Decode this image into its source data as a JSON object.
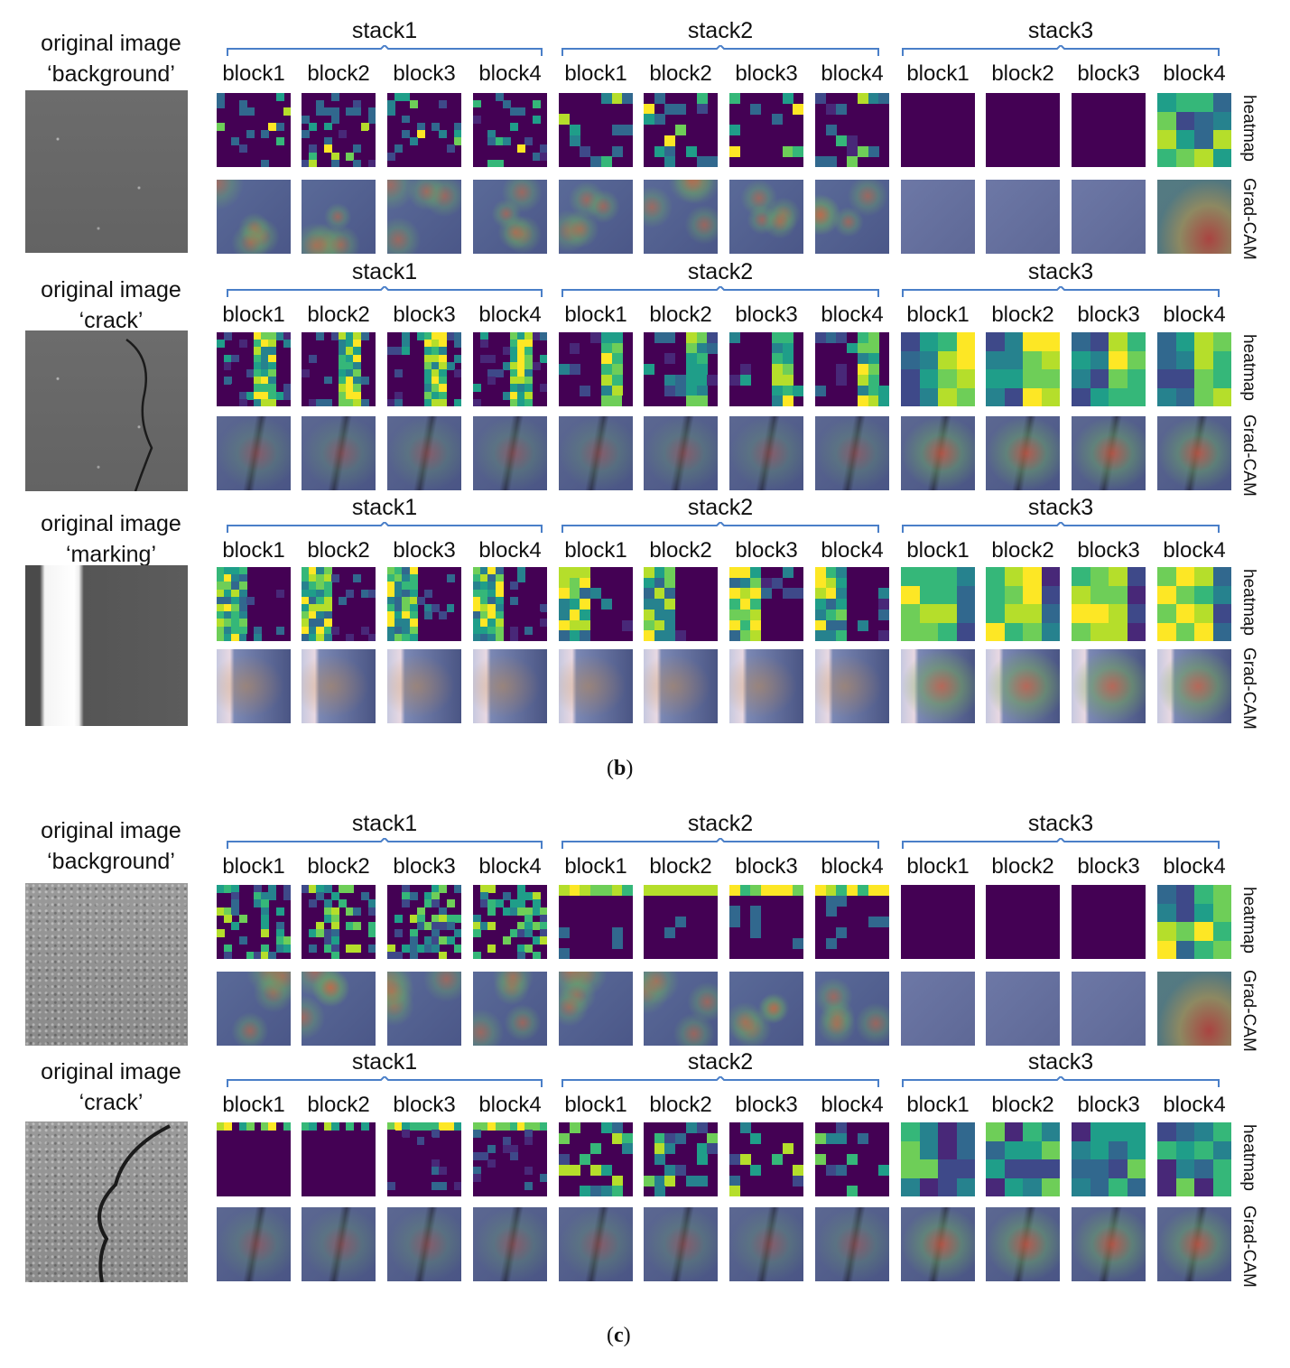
{
  "panels": [
    {
      "caption_letter": "b",
      "rows": [
        {
          "title_line1": "original image",
          "title_line2": "‘background’",
          "kind": "background",
          "stacks": [
            "stack1",
            "stack2",
            "stack3"
          ],
          "blocks": [
            "block1",
            "block2",
            "block3",
            "block4"
          ]
        },
        {
          "title_line1": "original image",
          "title_line2": "‘crack’",
          "kind": "crack",
          "stacks": [
            "stack1",
            "stack2",
            "stack3"
          ],
          "blocks": [
            "block1",
            "block2",
            "block3",
            "block4"
          ]
        },
        {
          "title_line1": "original image",
          "title_line2": "‘marking’",
          "kind": "marking",
          "stacks": [
            "stack1",
            "stack2",
            "stack3"
          ],
          "blocks": [
            "block1",
            "block2",
            "block3",
            "block4"
          ]
        }
      ]
    },
    {
      "caption_letter": "c",
      "rows": [
        {
          "title_line1": "original image",
          "title_line2": "‘background’",
          "kind": "background2",
          "stacks": [
            "stack1",
            "stack2",
            "stack3"
          ],
          "blocks": [
            "block1",
            "block2",
            "block3",
            "block4"
          ]
        },
        {
          "title_line1": "original image",
          "title_line2": "‘crack’",
          "kind": "crack2",
          "stacks": [
            "stack1",
            "stack2",
            "stack3"
          ],
          "blocks": [
            "block1",
            "block2",
            "block3",
            "block4"
          ]
        }
      ]
    }
  ],
  "row_labels": {
    "heatmap": "heatmap",
    "gradcam": "Grad-CAM"
  },
  "colors": {
    "viridis_low": "#440154",
    "viridis_mid": "#21918c",
    "viridis_high": "#fde725",
    "brace": "#4a7fc8",
    "asphalt": "#6f7078"
  }
}
